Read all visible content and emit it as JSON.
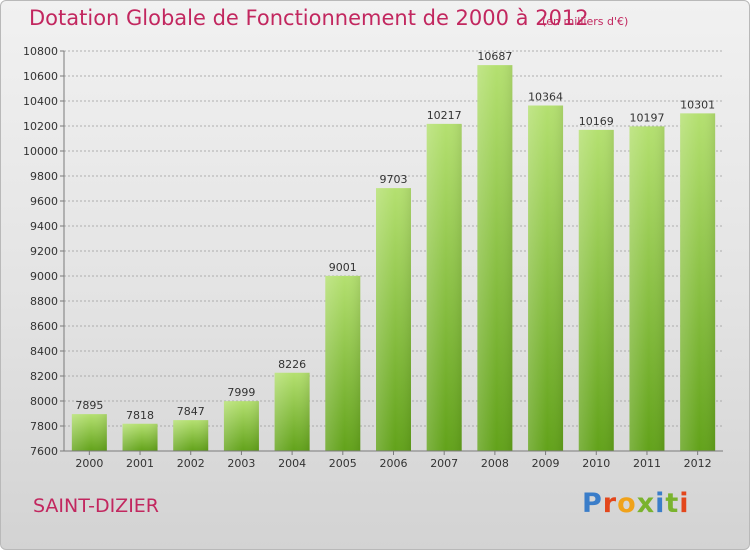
{
  "header": {
    "title": "Dotation Globale de Fonctionnement de 2000 à 2012",
    "unit": "(en milliers d'€)"
  },
  "footer": {
    "town": "SAINT-DIZIER",
    "logo_text": "Proxiti",
    "logo_colors": [
      "#3a7dc9",
      "#e3461b",
      "#f0a21a",
      "#7ab32e",
      "#3a7dc9",
      "#7ab32e",
      "#e3461b"
    ]
  },
  "colors": {
    "title": "#c2275f",
    "bar_light": "#b4e070",
    "bar_dark": "#62a21a",
    "grid": "#9a9a9a"
  },
  "chart_data": {
    "type": "bar",
    "title": "Dotation Globale de Fonctionnement de 2000 à 2012",
    "subtitle": "(en milliers d'€)",
    "xlabel": "",
    "ylabel": "",
    "categories": [
      "2000",
      "2001",
      "2002",
      "2003",
      "2004",
      "2005",
      "2006",
      "2007",
      "2008",
      "2009",
      "2010",
      "2011",
      "2012"
    ],
    "values": [
      7895,
      7818,
      7847,
      7999,
      8226,
      9001,
      9703,
      10217,
      10687,
      10364,
      10169,
      10197,
      10301
    ],
    "ylim": [
      7600,
      10800
    ],
    "yticks": [
      7600,
      7800,
      8000,
      8200,
      8400,
      8600,
      8800,
      9000,
      9200,
      9400,
      9600,
      9800,
      10000,
      10200,
      10400,
      10600,
      10800
    ],
    "grid": true,
    "legend": "none"
  }
}
